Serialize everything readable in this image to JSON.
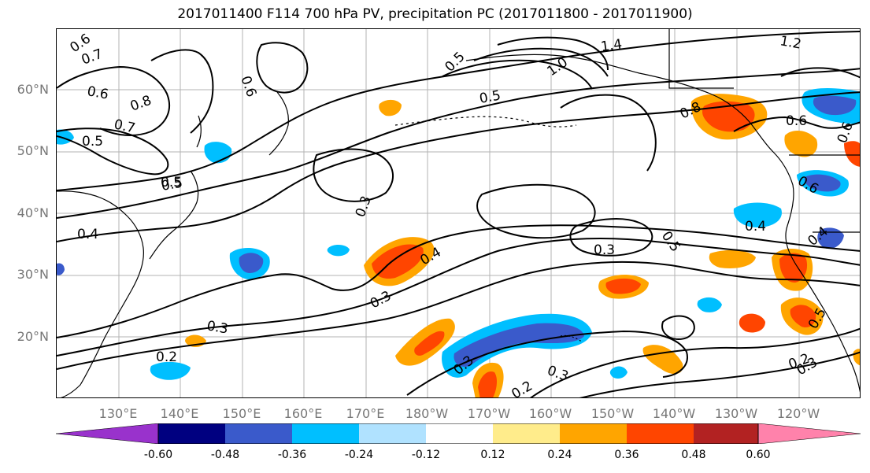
{
  "title": "2017011400 F114 700 hPa PV, precipitation PC (2017011800 - 2017011900)",
  "map": {
    "lat_labels": [
      "60°N",
      "50°N",
      "40°N",
      "30°N",
      "20°N"
    ],
    "lon_labels": [
      "130°E",
      "140°E",
      "150°E",
      "160°E",
      "170°E",
      "180°W",
      "170°W",
      "160°W",
      "150°W",
      "140°W",
      "130°W",
      "120°W"
    ],
    "contour_labels": [
      "0.6",
      "0.7",
      "0.6",
      "0.8",
      "0.7",
      "0.5",
      "0.6",
      "0.5",
      "0.4",
      "0.3",
      "0.4",
      "0.3",
      "0.3",
      "0.2",
      "0.3",
      "0.3",
      "0.2",
      "0.3",
      "0.5",
      "0.3",
      "0.4",
      "0.5",
      "0.6",
      "0.6",
      "0.6",
      "0.8",
      "0.5",
      "1.0",
      "1.2",
      "1.4",
      "0.2",
      "0.5",
      "0.4",
      "0.5"
    ]
  },
  "colorbar": {
    "labels": [
      "-0.60",
      "-0.48",
      "-0.36",
      "-0.24",
      "-0.12",
      "0.12",
      "0.24",
      "0.36",
      "0.48",
      "0.60"
    ],
    "colors": [
      "#9932cc",
      "#000080",
      "#3a5acb",
      "#00bfff",
      "#b0e2ff",
      "#ffffff",
      "#ffec8b",
      "#ffa500",
      "#ff4500",
      "#b22222",
      "#ff82ab"
    ]
  }
}
